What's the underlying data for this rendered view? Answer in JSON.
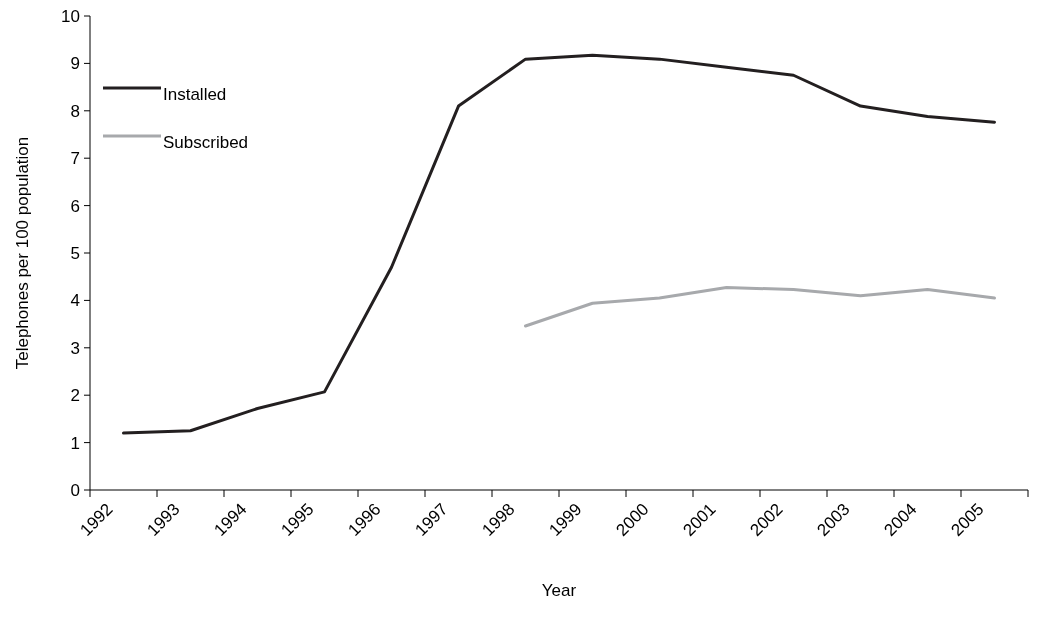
{
  "chart_data": {
    "type": "line",
    "xlabel": "Year",
    "ylabel": "Telephones per 100 population",
    "categories": [
      "1992",
      "1993",
      "1994",
      "1995",
      "1996",
      "1997",
      "1998",
      "1999",
      "2000",
      "2001",
      "2002",
      "2003",
      "2004",
      "2005"
    ],
    "series": [
      {
        "name": "Installed",
        "color": "#231f20",
        "values": [
          1.2,
          1.25,
          1.72,
          2.07,
          4.7,
          8.1,
          9.09,
          9.17,
          9.09,
          8.92,
          8.75,
          8.1,
          7.88,
          7.76
        ]
      },
      {
        "name": "Subscribed",
        "color": "#a7a9ac",
        "values": [
          null,
          null,
          null,
          null,
          null,
          null,
          3.46,
          3.94,
          4.05,
          4.27,
          4.23,
          4.1,
          4.23,
          4.05
        ]
      }
    ],
    "ylim": [
      0,
      10
    ],
    "yticks": [
      0,
      1,
      2,
      3,
      4,
      5,
      6,
      7,
      8,
      9,
      10
    ],
    "grid": false,
    "legend": "top left",
    "marker": "none",
    "line_style": "solid"
  }
}
